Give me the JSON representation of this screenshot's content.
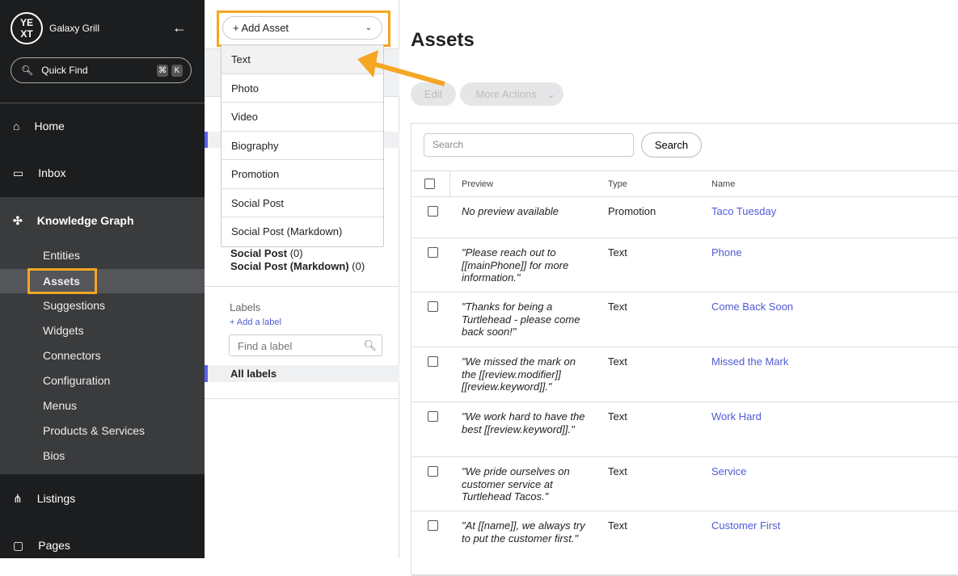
{
  "sidebar": {
    "org": "Galaxy Grill",
    "quick_find": "Quick Find",
    "kbd1": "⌘",
    "kbd2": "K",
    "nav": [
      {
        "label": "Home",
        "icon": "⌂"
      },
      {
        "label": "Inbox",
        "icon": "▭"
      },
      {
        "label": "Knowledge Graph",
        "icon": "✣"
      },
      {
        "label": "Listings",
        "icon": "⋔"
      },
      {
        "label": "Pages",
        "icon": "▢"
      }
    ],
    "sub": [
      "Entities",
      "Assets",
      "Suggestions",
      "Widgets",
      "Connectors",
      "Configuration",
      "Menus",
      "Products & Services",
      "Bios"
    ]
  },
  "add_asset": {
    "label": "Add Asset",
    "options": [
      "Text",
      "Photo",
      "Video",
      "Biography",
      "Promotion",
      "Social Post",
      "Social Post (Markdown)"
    ]
  },
  "filters": {
    "behind": {
      "label": "Social Post",
      "count": "(0)"
    },
    "last": {
      "label": "Social Post (Markdown)",
      "count": "(0)"
    },
    "labels_title": "Labels",
    "add_label": "+ Add a label",
    "find_placeholder": "Find a label",
    "all_labels": "All labels"
  },
  "main": {
    "title": "Assets",
    "edit": "Edit",
    "more": "More Actions",
    "search_placeholder": "Search",
    "search_btn": "Search",
    "columns": [
      "Preview",
      "Type",
      "Name"
    ],
    "rows": [
      {
        "preview": "No preview available",
        "type": "Promotion",
        "name": "Taco Tuesday"
      },
      {
        "preview": "\"Please reach out to [[mainPhone]] for more information.\"",
        "type": "Text",
        "name": "Phone"
      },
      {
        "preview": "\"Thanks for being a Turtlehead - please come back soon!\"",
        "type": "Text",
        "name": "Come Back Soon"
      },
      {
        "preview": "\"We missed the mark on the [[review.modifier]] [[review.keyword]].\"",
        "type": "Text",
        "name": "Missed the Mark"
      },
      {
        "preview": "\"We work hard to have the best [[review.keyword]].\"",
        "type": "Text",
        "name": "Work Hard"
      },
      {
        "preview": "\"We pride ourselves on customer service at Turtlehead Tacos.\"",
        "type": "Text",
        "name": "Service"
      },
      {
        "preview": "\"At [[name]], we always try to put the customer first.\"",
        "type": "Text",
        "name": "Customer First"
      }
    ]
  },
  "colors": {
    "highlight": "#f5a623",
    "link": "#4f5bd5",
    "sidebar": "#1c1d1f"
  }
}
